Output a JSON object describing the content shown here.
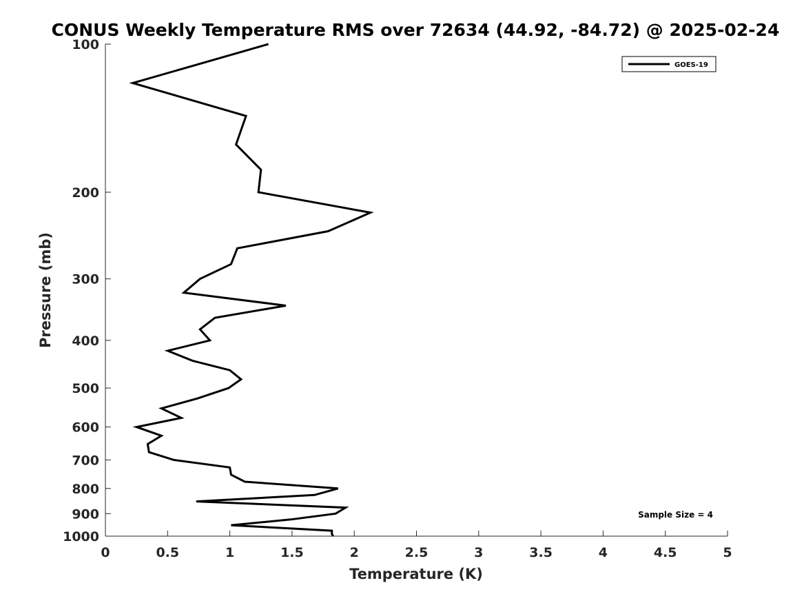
{
  "chart_data": {
    "type": "line",
    "title": "CONUS Weekly Temperature RMS over 72634 (44.92, -84.72) @ 2025-02-24",
    "xlabel": "Temperature (K)",
    "ylabel": "Pressure (mb)",
    "xlim": [
      0,
      5
    ],
    "ylim": [
      100,
      1000
    ],
    "yscale": "log",
    "yreversed": true,
    "xticks": [
      0,
      0.5,
      1,
      1.5,
      2,
      2.5,
      3,
      3.5,
      4,
      4.5,
      5
    ],
    "xtick_labels": [
      "0",
      "0.5",
      "1",
      "1.5",
      "2",
      "2.5",
      "3",
      "3.5",
      "4",
      "4.5",
      "5"
    ],
    "yticks": [
      100,
      200,
      300,
      400,
      500,
      600,
      700,
      800,
      900,
      1000
    ],
    "ytick_labels": [
      "100",
      "200",
      "300",
      "400",
      "500",
      "600",
      "700",
      "800",
      "900",
      "1000"
    ],
    "grid": false,
    "legend_position": "top-right",
    "series": [
      {
        "name": "GOES-19",
        "color": "#000000",
        "x": [
          1.31,
          0.22,
          1.13,
          1.05,
          1.25,
          1.24,
          1.23,
          2.13,
          1.79,
          1.06,
          1.01,
          0.76,
          0.63,
          1.45,
          0.88,
          0.76,
          0.84,
          0.5,
          0.7,
          1.0,
          1.09,
          0.99,
          0.74,
          0.45,
          0.61,
          0.25,
          0.45,
          0.34,
          0.35,
          0.55,
          1.0,
          1.01,
          1.12,
          1.87,
          1.68,
          0.73,
          1.93,
          1.85,
          1.49,
          1.01,
          1.82,
          1.82,
          1.83
        ],
        "y": [
          100,
          120,
          140,
          160,
          180,
          190,
          200,
          220,
          240,
          260,
          280,
          300,
          320,
          340,
          360,
          380,
          400,
          420,
          440,
          460,
          480,
          500,
          525,
          550,
          575,
          600,
          625,
          650,
          675,
          700,
          725,
          750,
          775,
          800,
          825,
          850,
          875,
          900,
          925,
          950,
          975,
          990,
          1000
        ]
      }
    ],
    "annotations": [
      "Sample Size = 4"
    ]
  }
}
